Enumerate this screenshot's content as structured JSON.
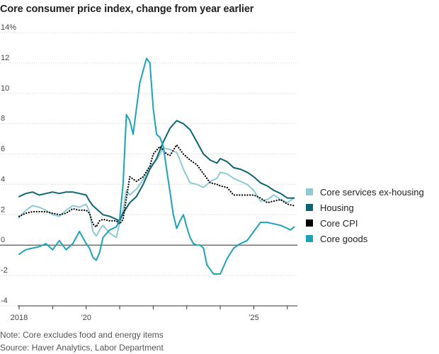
{
  "chart_data": {
    "type": "line",
    "title": "Core consumer price index, change from year earlier",
    "xlabel": "",
    "ylabel": "",
    "x_range": [
      2018.0,
      2026.3
    ],
    "ylim": [
      -4,
      14
    ],
    "y_ticks": [
      -4,
      -2,
      0,
      2,
      4,
      6,
      8,
      10,
      12,
      14
    ],
    "y_tick_labels": [
      "-4",
      "-2",
      "0",
      "2",
      "4",
      "6",
      "8",
      "10",
      "12",
      "14%"
    ],
    "x_ticks": [
      2018,
      2019,
      2020,
      2021,
      2022,
      2023,
      2024,
      2025,
      2026
    ],
    "x_tick_labels": [
      "2018",
      "",
      "’20",
      "",
      "",
      "",
      "",
      "’25",
      ""
    ],
    "grid": "horizontal",
    "legend_position": "right",
    "series": [
      {
        "name": "Core services ex-housing",
        "color": "#8ecbd3",
        "style": "solid",
        "x": [
          2018.0,
          2018.2,
          2018.4,
          2018.6,
          2018.8,
          2019.0,
          2019.2,
          2019.4,
          2019.6,
          2019.8,
          2020.0,
          2020.1,
          2020.2,
          2020.3,
          2020.4,
          2020.5,
          2020.7,
          2020.9,
          2021.0,
          2021.1,
          2021.2,
          2021.3,
          2021.5,
          2021.7,
          2021.9,
          2022.1,
          2022.3,
          2022.5,
          2022.7,
          2022.8,
          2022.9,
          2023.1,
          2023.3,
          2023.5,
          2023.7,
          2023.9,
          2024.0,
          2024.2,
          2024.4,
          2024.6,
          2024.8,
          2025.0,
          2025.2,
          2025.4,
          2025.6,
          2025.8,
          2026.0,
          2026.2
        ],
        "y": [
          1.8,
          2.3,
          2.6,
          2.5,
          2.3,
          2.0,
          1.9,
          2.3,
          2.6,
          2.5,
          2.7,
          2.2,
          0.9,
          0.6,
          1.0,
          1.3,
          0.8,
          0.5,
          1.5,
          2.3,
          3.6,
          3.3,
          3.7,
          4.3,
          5.2,
          5.6,
          6.4,
          6.3,
          6.1,
          5.6,
          5.0,
          4.1,
          4.0,
          3.8,
          4.2,
          4.4,
          4.8,
          4.7,
          4.4,
          4.2,
          4.0,
          3.6,
          2.9,
          3.0,
          3.3,
          3.0,
          2.8,
          3.1
        ]
      },
      {
        "name": "Housing",
        "color": "#0e6470",
        "style": "solid",
        "x": [
          2018.0,
          2018.2,
          2018.4,
          2018.6,
          2018.8,
          2019.0,
          2019.2,
          2019.4,
          2019.6,
          2019.8,
          2020.0,
          2020.1,
          2020.2,
          2020.3,
          2020.4,
          2020.5,
          2020.7,
          2020.9,
          2021.0,
          2021.1,
          2021.3,
          2021.5,
          2021.7,
          2021.9,
          2022.1,
          2022.3,
          2022.5,
          2022.7,
          2022.9,
          2023.1,
          2023.3,
          2023.5,
          2023.7,
          2023.9,
          2024.0,
          2024.2,
          2024.4,
          2024.6,
          2024.8,
          2025.0,
          2025.2,
          2025.4,
          2025.6,
          2025.8,
          2026.0,
          2026.2
        ],
        "y": [
          3.2,
          3.4,
          3.5,
          3.3,
          3.4,
          3.5,
          3.4,
          3.5,
          3.5,
          3.4,
          3.3,
          2.9,
          2.6,
          2.4,
          2.2,
          2.0,
          1.9,
          1.7,
          1.6,
          2.1,
          2.8,
          3.2,
          4.0,
          5.0,
          5.7,
          6.8,
          7.7,
          8.2,
          8.0,
          7.6,
          6.8,
          6.0,
          5.6,
          5.4,
          5.7,
          5.5,
          5.1,
          5.0,
          4.8,
          4.5,
          4.1,
          3.9,
          3.6,
          3.4,
          3.1,
          3.1
        ]
      },
      {
        "name": "Core CPI",
        "color": "#000000",
        "style": "dotted",
        "x": [
          2018.0,
          2018.2,
          2018.4,
          2018.6,
          2018.8,
          2019.0,
          2019.2,
          2019.4,
          2019.6,
          2019.8,
          2020.0,
          2020.1,
          2020.2,
          2020.3,
          2020.4,
          2020.5,
          2020.7,
          2020.9,
          2021.0,
          2021.1,
          2021.3,
          2021.5,
          2021.7,
          2021.9,
          2022.0,
          2022.2,
          2022.4,
          2022.5,
          2022.7,
          2022.9,
          2023.1,
          2023.3,
          2023.5,
          2023.7,
          2023.9,
          2024.0,
          2024.2,
          2024.4,
          2024.6,
          2024.8,
          2025.0,
          2025.2,
          2025.4,
          2025.6,
          2025.8,
          2026.0,
          2026.2
        ],
        "y": [
          1.9,
          2.1,
          2.2,
          2.2,
          2.2,
          2.1,
          2.0,
          2.1,
          2.4,
          2.3,
          2.3,
          2.1,
          1.4,
          1.2,
          1.6,
          1.7,
          1.6,
          1.6,
          1.4,
          1.7,
          4.5,
          4.2,
          4.5,
          5.2,
          6.0,
          6.5,
          6.0,
          5.9,
          6.6,
          6.0,
          5.6,
          5.3,
          4.7,
          4.1,
          4.0,
          3.9,
          3.8,
          3.3,
          3.3,
          3.3,
          3.3,
          3.1,
          2.8,
          2.9,
          3.0,
          2.7,
          2.6
        ]
      },
      {
        "name": "Core goods",
        "color": "#1ba3b8",
        "style": "solid",
        "x": [
          2018.0,
          2018.2,
          2018.4,
          2018.6,
          2018.8,
          2019.0,
          2019.2,
          2019.4,
          2019.6,
          2019.8,
          2020.0,
          2020.1,
          2020.2,
          2020.3,
          2020.4,
          2020.5,
          2020.7,
          2020.9,
          2021.0,
          2021.1,
          2021.2,
          2021.3,
          2021.4,
          2021.5,
          2021.6,
          2021.8,
          2021.9,
          2022.0,
          2022.1,
          2022.2,
          2022.3,
          2022.4,
          2022.5,
          2022.6,
          2022.7,
          2022.8,
          2022.9,
          2023.0,
          2023.1,
          2023.2,
          2023.3,
          2023.4,
          2023.5,
          2023.6,
          2023.8,
          2024.0,
          2024.2,
          2024.4,
          2024.6,
          2024.8,
          2025.0,
          2025.2,
          2025.4,
          2025.6,
          2025.8,
          2026.0,
          2026.1,
          2026.2
        ],
        "y": [
          -0.6,
          -0.3,
          -0.2,
          -0.1,
          0.1,
          -0.3,
          0.3,
          -0.3,
          0.1,
          0.9,
          0.1,
          -0.2,
          -0.8,
          -1.0,
          -0.5,
          0.5,
          1.0,
          1.2,
          1.7,
          4.0,
          8.6,
          8.2,
          7.3,
          9.0,
          10.7,
          12.3,
          12.0,
          9.0,
          7.3,
          7.1,
          6.5,
          5.0,
          3.5,
          2.0,
          1.1,
          1.6,
          2.0,
          1.2,
          0.5,
          0.1,
          0.0,
          0.0,
          -0.2,
          -1.3,
          -1.9,
          -1.9,
          -0.9,
          -0.2,
          0.1,
          0.3,
          0.9,
          1.5,
          1.5,
          1.4,
          1.3,
          1.1,
          1.0,
          1.2
        ]
      }
    ]
  },
  "notes": {
    "line1": "Note: Core excludes food and energy items",
    "line2": "Source: Haver Analytics, Labor Department"
  }
}
